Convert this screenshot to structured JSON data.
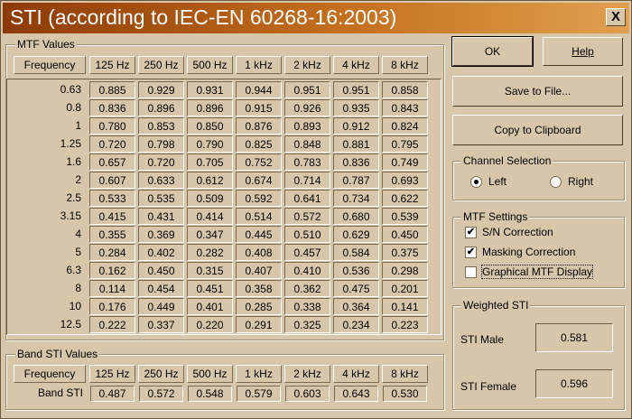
{
  "window": {
    "title": "STI (according to IEC-EN 60268-16:2003)",
    "close_label": "X"
  },
  "mtf": {
    "legend": "MTF Values",
    "headers": [
      "Frequency",
      "125 Hz",
      "250 Hz",
      "500 Hz",
      "1 kHz",
      "2 kHz",
      "4 kHz",
      "8 kHz"
    ],
    "rows": [
      [
        "0.63",
        "0.885",
        "0.929",
        "0.931",
        "0.944",
        "0.951",
        "0.951",
        "0.858"
      ],
      [
        "0.8",
        "0.836",
        "0.896",
        "0.896",
        "0.915",
        "0.926",
        "0.935",
        "0.843"
      ],
      [
        "1",
        "0.780",
        "0.853",
        "0.850",
        "0.876",
        "0.893",
        "0.912",
        "0.824"
      ],
      [
        "1.25",
        "0.720",
        "0.798",
        "0.790",
        "0.825",
        "0.848",
        "0.881",
        "0.795"
      ],
      [
        "1.6",
        "0.657",
        "0.720",
        "0.705",
        "0.752",
        "0.783",
        "0.836",
        "0.749"
      ],
      [
        "2",
        "0.607",
        "0.633",
        "0.612",
        "0.674",
        "0.714",
        "0.787",
        "0.693"
      ],
      [
        "2.5",
        "0.533",
        "0.535",
        "0.509",
        "0.592",
        "0.641",
        "0.734",
        "0.622"
      ],
      [
        "3.15",
        "0.415",
        "0.431",
        "0.414",
        "0.514",
        "0.572",
        "0.680",
        "0.539"
      ],
      [
        "4",
        "0.355",
        "0.369",
        "0.347",
        "0.445",
        "0.510",
        "0.629",
        "0.450"
      ],
      [
        "5",
        "0.284",
        "0.402",
        "0.282",
        "0.408",
        "0.457",
        "0.584",
        "0.375"
      ],
      [
        "6.3",
        "0.162",
        "0.450",
        "0.315",
        "0.407",
        "0.410",
        "0.536",
        "0.298"
      ],
      [
        "8",
        "0.114",
        "0.454",
        "0.451",
        "0.358",
        "0.362",
        "0.475",
        "0.201"
      ],
      [
        "10",
        "0.176",
        "0.449",
        "0.401",
        "0.285",
        "0.338",
        "0.364",
        "0.141"
      ],
      [
        "12.5",
        "0.222",
        "0.337",
        "0.220",
        "0.291",
        "0.325",
        "0.234",
        "0.223"
      ]
    ]
  },
  "band": {
    "legend": "Band STI Values",
    "headers": [
      "Frequency",
      "125 Hz",
      "250 Hz",
      "500 Hz",
      "1 kHz",
      "2 kHz",
      "4 kHz",
      "8 kHz"
    ],
    "row_label": "Band STI",
    "values": [
      "0.487",
      "0.572",
      "0.548",
      "0.579",
      "0.603",
      "0.643",
      "0.530"
    ]
  },
  "buttons": {
    "ok": "OK",
    "help": "Help",
    "save": "Save to File...",
    "copy": "Copy to Clipboard"
  },
  "channel": {
    "legend": "Channel Selection",
    "left": "Left",
    "right": "Right",
    "selected": "left"
  },
  "settings": {
    "legend": "MTF Settings",
    "items": [
      {
        "label": "S/N Correction",
        "checked": true
      },
      {
        "label": "Masking Correction",
        "checked": true
      },
      {
        "label": "Graphical MTF Display",
        "checked": false
      }
    ]
  },
  "weighted": {
    "legend": "Weighted STI",
    "male_label": "STI Male",
    "male_value": "0.581",
    "female_label": "STI Female",
    "female_value": "0.596"
  },
  "colors": {
    "title_start": "#8e3a08",
    "title_end": "#e0a050",
    "face": "#d7c6aa"
  }
}
